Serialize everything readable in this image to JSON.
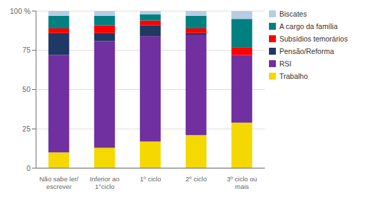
{
  "chart_data": {
    "type": "bar",
    "stacked": true,
    "grid": true,
    "legend": "right",
    "categories": [
      "Não sabe ler/\nescrever",
      "Inferior ao\n1°ciclo",
      "1º ciclo",
      "2º ciclo",
      "3º ciclo ou\nmais"
    ],
    "series": [
      {
        "name": "Trabalho",
        "color": "#f5d800",
        "values": [
          10,
          13,
          17,
          21,
          29
        ]
      },
      {
        "name": "RSI",
        "color": "#7030a0",
        "values": [
          62,
          68,
          67,
          64,
          43
        ]
      },
      {
        "name": "Pensão/Reforma",
        "color": "#1f3864",
        "values": [
          14,
          5,
          7,
          1,
          0
        ]
      },
      {
        "name": "Subsídios temorários",
        "color": "#ff0000",
        "values": [
          3,
          5,
          3,
          3,
          5
        ]
      },
      {
        "name": "A cargo da família",
        "color": "#008080",
        "values": [
          8,
          6,
          4,
          8,
          18
        ]
      },
      {
        "name": "Biscates",
        "color": "#b8cce4",
        "values": [
          3,
          3,
          2,
          3,
          5
        ]
      }
    ],
    "ylim": [
      0,
      100
    ],
    "yticks": [
      0,
      25,
      50,
      75,
      {
        "value": 100,
        "label": "100 %"
      }
    ]
  }
}
